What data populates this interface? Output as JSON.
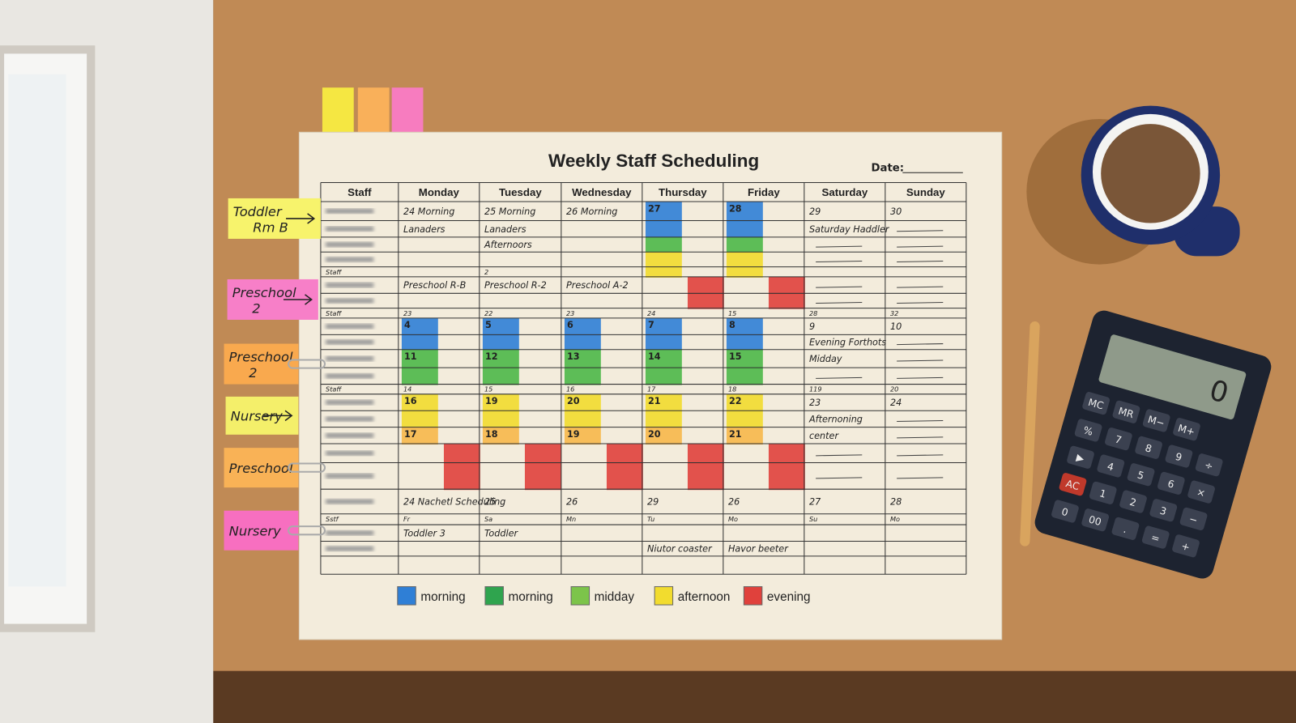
{
  "title": "Weekly Staff Scheduling",
  "date_label": "Date:",
  "table": {
    "headers": [
      "Staff",
      "Monday",
      "Tuesday",
      "Wednesday",
      "Thursday",
      "Friday",
      "Saturday",
      "Sunday"
    ],
    "rows": [
      [
        null,
        "24 Morning",
        "25 Morning",
        "26 Morning",
        {
          "text": "27",
          "color": "#2f7fd6"
        },
        {
          "text": "28",
          "color": "#2f7fd6"
        },
        "29",
        "30"
      ],
      [
        null,
        "Lanaders",
        "Lanaders",
        null,
        {
          "color": "#2f7fd6"
        },
        {
          "color": "#2f7fd6"
        },
        "Saturday Haddler",
        null
      ],
      [
        null,
        null,
        "Afternoors",
        null,
        {
          "color": "#4cb848"
        },
        {
          "color": "#4cb848"
        },
        null,
        null
      ],
      [
        null,
        null,
        null,
        null,
        {
          "color": "#f2dc2e"
        },
        {
          "color": "#f2dc2e"
        },
        null,
        null
      ],
      [
        "Staff",
        null,
        "2",
        null,
        {
          "color": "#f2dc2e"
        },
        {
          "color": "#f2dc2e"
        },
        null,
        null
      ],
      [
        null,
        "Preschool R-B",
        "Preschool R-2",
        "Preschool A-2",
        {
          "color": "#e0413c"
        },
        {
          "color": "#e0413c"
        },
        null,
        null
      ],
      [
        null,
        null,
        null,
        null,
        {
          "color": "#e0413c"
        },
        {
          "color": "#e0413c"
        },
        null,
        null
      ],
      [
        "Staff",
        "23",
        "22",
        "23",
        "24",
        "15",
        "28",
        "32"
      ],
      [
        null,
        {
          "text": "4",
          "color": "#2f7fd6"
        },
        {
          "text": "5",
          "color": "#2f7fd6"
        },
        {
          "text": "6",
          "color": "#2f7fd6"
        },
        {
          "text": "7",
          "color": "#2f7fd6"
        },
        {
          "text": "8",
          "color": "#2f7fd6"
        },
        "9",
        "10"
      ],
      [
        null,
        {
          "color": "#2f7fd6"
        },
        {
          "color": "#2f7fd6"
        },
        {
          "color": "#2f7fd6"
        },
        {
          "color": "#2f7fd6"
        },
        {
          "color": "#2f7fd6"
        },
        "Evening Forthots",
        null
      ],
      [
        null,
        {
          "text": "11",
          "color": "#4cb848"
        },
        {
          "text": "12",
          "color": "#4cb848"
        },
        {
          "text": "13",
          "color": "#4cb848"
        },
        {
          "text": "14",
          "color": "#4cb848"
        },
        {
          "text": "15",
          "color": "#4cb848"
        },
        "Midday",
        null
      ],
      [
        null,
        {
          "color": "#4cb848"
        },
        {
          "color": "#4cb848"
        },
        {
          "color": "#4cb848"
        },
        {
          "color": "#4cb848"
        },
        {
          "color": "#4cb848"
        },
        null,
        null
      ],
      [
        "Staff",
        "14",
        "15",
        "16",
        "17",
        "18",
        "119",
        "20"
      ],
      [
        null,
        {
          "text": "16",
          "color": "#f2dc2e"
        },
        {
          "text": "19",
          "color": "#f2dc2e"
        },
        {
          "text": "20",
          "color": "#f2dc2e"
        },
        {
          "text": "21",
          "color": "#f2dc2e"
        },
        {
          "text": "22",
          "color": "#f2dc2e"
        },
        "23",
        "24"
      ],
      [
        null,
        {
          "color": "#f2dc2e"
        },
        {
          "color": "#f2dc2e"
        },
        {
          "color": "#f2dc2e"
        },
        {
          "color": "#f2dc2e"
        },
        {
          "color": "#f2dc2e"
        },
        "Afternoning",
        null
      ],
      [
        null,
        {
          "text": "17",
          "color": "#f7b84a"
        },
        {
          "text": "18",
          "color": "#f7b84a"
        },
        {
          "text": "19",
          "color": "#f7b84a"
        },
        {
          "text": "20",
          "color": "#f7b84a"
        },
        {
          "text": "21",
          "color": "#f7b84a"
        },
        "center",
        null
      ],
      [
        null,
        {
          "color": "#e0413c"
        },
        {
          "color": "#e0413c"
        },
        {
          "color": "#e0413c"
        },
        {
          "color": "#e0413c"
        },
        {
          "color": "#e0413c"
        },
        null,
        null
      ],
      [
        null,
        {
          "color": "#e0413c"
        },
        {
          "color": "#e0413c"
        },
        {
          "color": "#e0413c"
        },
        {
          "color": "#e0413c"
        },
        {
          "color": "#e0413c"
        },
        null,
        null
      ],
      [
        null,
        "24 Nachetl Scheduling",
        "25",
        "26",
        "29",
        "26",
        "27",
        "28"
      ],
      [
        "Sstf",
        "Fr",
        "Sa",
        "Mn",
        "Tu",
        "Mo",
        "Su",
        "Mo"
      ],
      [
        null,
        "Toddler 3",
        "Toddler",
        null,
        null,
        null,
        null,
        null
      ],
      [
        null,
        null,
        null,
        null,
        "Niutor coaster",
        "Havor beeter",
        null,
        null
      ],
      [
        null,
        null,
        null,
        null,
        null,
        null,
        null,
        null
      ]
    ]
  },
  "legend": [
    {
      "label": "morning",
      "color": "#2f7fd6"
    },
    {
      "label": "morning",
      "color": "#2fa44e"
    },
    {
      "label": "midday",
      "color": "#7cc44a"
    },
    {
      "label": "afternoon",
      "color": "#f2dc2e"
    },
    {
      "label": "evening",
      "color": "#e0413c"
    }
  ],
  "sticky_notes": [
    {
      "lines": [
        "Toddler",
        "Rm B"
      ],
      "color": "#f7f36c"
    },
    {
      "lines": [
        "Preschool",
        "2"
      ],
      "color": "#f77fc8"
    },
    {
      "lines": [
        "Preschool",
        "2"
      ],
      "color": "#f9a94e"
    },
    {
      "lines": [
        "Nursery"
      ],
      "color": "#f4ef6a"
    },
    {
      "lines": [
        "Preschool"
      ],
      "color": "#f9b256"
    },
    {
      "lines": [
        "Nursery"
      ],
      "color": "#f76fc0"
    }
  ],
  "calculator": {
    "display": "0",
    "keys": [
      [
        "MC",
        "MR",
        "M−",
        "M+"
      ],
      [
        "%",
        "7",
        "8",
        "9",
        "÷"
      ],
      [
        "▶",
        "4",
        "5",
        "6",
        "×"
      ],
      [
        "AC",
        "1",
        "2",
        "3",
        "−"
      ],
      [
        "0",
        "00",
        ".",
        "=",
        "+"
      ]
    ]
  }
}
